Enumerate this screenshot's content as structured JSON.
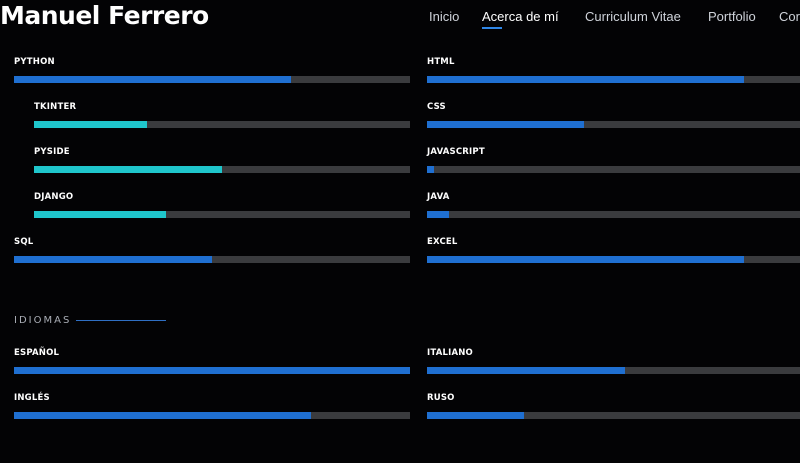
{
  "header": {
    "brand": "Manuel Ferrero",
    "nav": [
      {
        "label": "Inicio"
      },
      {
        "label": "Acerca de mí"
      },
      {
        "label": "Curriculum Vitae"
      },
      {
        "label": "Portfolio"
      },
      {
        "label": "Cor"
      }
    ]
  },
  "skills_left": [
    {
      "label": "PYTHON",
      "level": 0.7
    },
    {
      "label": "TKINTER",
      "level": 0.3
    },
    {
      "label": "PYSIDE",
      "level": 0.5
    },
    {
      "label": "DJANGO",
      "level": 0.35
    },
    {
      "label": "SQL",
      "level": 0.5
    }
  ],
  "skills_right": [
    {
      "label": "HTML",
      "level": 0.85
    },
    {
      "label": "CSS",
      "level": 0.42
    },
    {
      "label": "JAVASCRIPT",
      "level": 0.02
    },
    {
      "label": "JAVA",
      "level": 0.06
    },
    {
      "label": "EXCEL",
      "level": 0.85
    }
  ],
  "languages_section": {
    "title": "IDIOMAS"
  },
  "languages_left": [
    {
      "label": "ESPAÑOL",
      "level": 1.0
    },
    {
      "label": "INGLÉS",
      "level": 0.75
    }
  ],
  "languages_right": [
    {
      "label": "ITALIANO",
      "level": 0.53
    },
    {
      "label": "RUSO",
      "level": 0.26
    }
  ],
  "colors": {
    "primary_bar": "#1f6fd1",
    "sub_bar": "#1fc6cc",
    "track": "#3a3b3e",
    "accent": "#2f86e6"
  }
}
